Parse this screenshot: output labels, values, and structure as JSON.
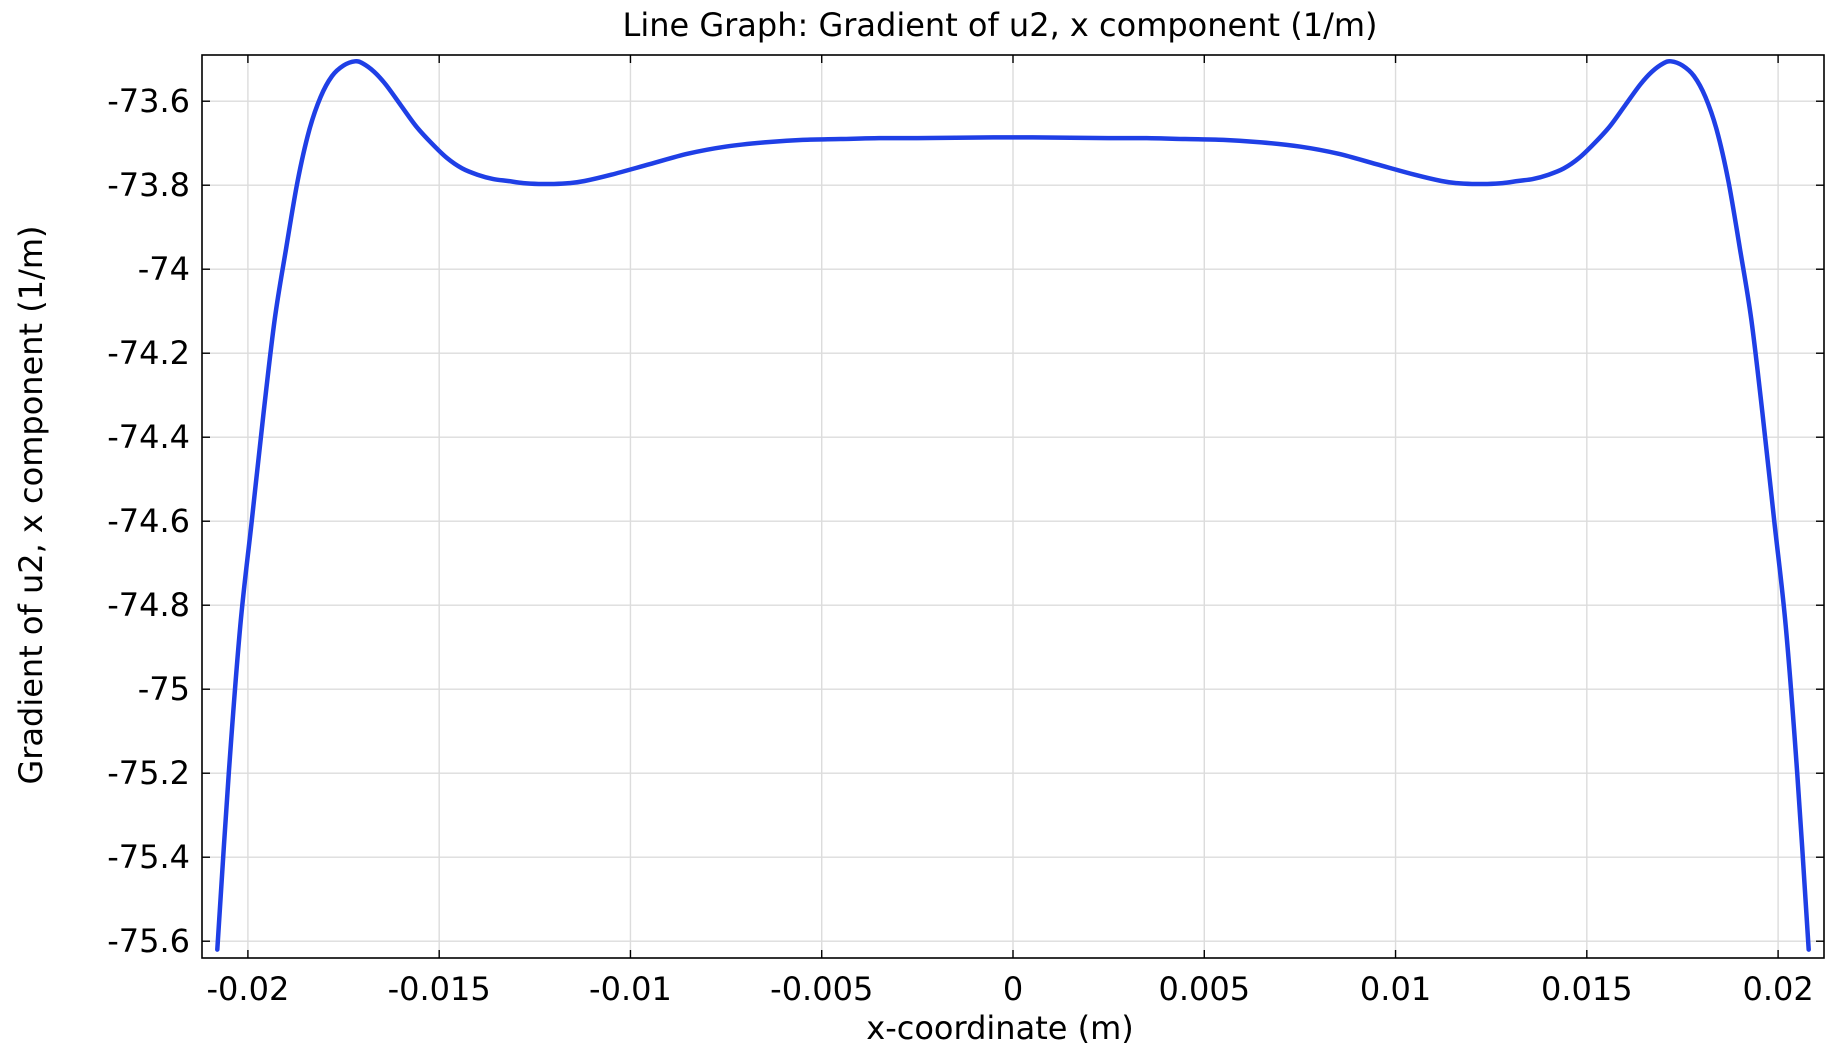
{
  "chart_data": {
    "type": "line",
    "title": "Line Graph: Gradient of u2, x component (1/m)",
    "xlabel": "x-coordinate (m)",
    "ylabel": "Gradient of u2, x component (1/m)",
    "xlim": [
      -0.0212,
      0.0212
    ],
    "ylim": [
      -75.64,
      -73.49
    ],
    "grid": true,
    "x_ticks": [
      -0.02,
      -0.015,
      -0.01,
      -0.005,
      0,
      0.005,
      0.01,
      0.015,
      0.02
    ],
    "x_tick_labels": [
      "-0.02",
      "-0.015",
      "-0.01",
      "-0.005",
      "0",
      "0.005",
      "0.01",
      "0.015",
      "0.02"
    ],
    "y_ticks": [
      -73.6,
      -73.8,
      -74,
      -74.2,
      -74.4,
      -74.6,
      -74.8,
      -75,
      -75.2,
      -75.4,
      -75.6
    ],
    "y_tick_labels": [
      "-73.6",
      "-73.8",
      "-74",
      "-74.2",
      "-74.4",
      "-74.6",
      "-74.8",
      "-75",
      "-75.2",
      "-75.4",
      "-75.6"
    ],
    "series": [
      {
        "color": "#1f3fe6",
        "x": [
          -0.0208,
          -0.0205,
          -0.0202,
          -0.0199,
          -0.0196,
          -0.0193,
          -0.019,
          -0.0187,
          -0.0184,
          -0.0181,
          -0.0178,
          -0.0175,
          -0.0172,
          -0.017,
          -0.0167,
          -0.0164,
          -0.016,
          -0.0156,
          -0.0152,
          -0.0148,
          -0.0144,
          -0.014,
          -0.0136,
          -0.0132,
          -0.0128,
          -0.0124,
          -0.012,
          -0.0116,
          -0.0112,
          -0.0105,
          -0.0095,
          -0.0085,
          -0.0075,
          -0.0065,
          -0.0055,
          -0.0045,
          -0.0035,
          -0.0025,
          -0.0015,
          0,
          0.0015,
          0.0025,
          0.0035,
          0.0045,
          0.0055,
          0.0065,
          0.0075,
          0.0085,
          0.0095,
          0.0105,
          0.0112,
          0.0116,
          0.012,
          0.0124,
          0.0128,
          0.0132,
          0.0136,
          0.014,
          0.0144,
          0.0148,
          0.0152,
          0.0156,
          0.016,
          0.0164,
          0.0167,
          0.017,
          0.0172,
          0.0175,
          0.0178,
          0.0181,
          0.0184,
          0.0187,
          0.019,
          0.0193,
          0.0196,
          0.0199,
          0.0202,
          0.0205,
          0.0208
        ],
        "y": [
          -75.62,
          -75.2,
          -74.85,
          -74.6,
          -74.35,
          -74.12,
          -73.95,
          -73.79,
          -73.67,
          -73.59,
          -73.54,
          -73.515,
          -73.505,
          -73.51,
          -73.53,
          -73.56,
          -73.61,
          -73.66,
          -73.7,
          -73.735,
          -73.76,
          -73.775,
          -73.785,
          -73.79,
          -73.795,
          -73.797,
          -73.797,
          -73.795,
          -73.79,
          -73.775,
          -73.75,
          -73.725,
          -73.708,
          -73.698,
          -73.692,
          -73.69,
          -73.688,
          -73.688,
          -73.687,
          -73.686,
          -73.687,
          -73.688,
          -73.688,
          -73.69,
          -73.692,
          -73.698,
          -73.708,
          -73.725,
          -73.75,
          -73.775,
          -73.79,
          -73.795,
          -73.797,
          -73.797,
          -73.795,
          -73.79,
          -73.785,
          -73.775,
          -73.76,
          -73.735,
          -73.7,
          -73.66,
          -73.61,
          -73.56,
          -73.53,
          -73.51,
          -73.505,
          -73.515,
          -73.54,
          -73.59,
          -73.67,
          -73.79,
          -73.95,
          -74.12,
          -74.35,
          -74.6,
          -74.85,
          -75.2,
          -75.62
        ]
      }
    ]
  }
}
